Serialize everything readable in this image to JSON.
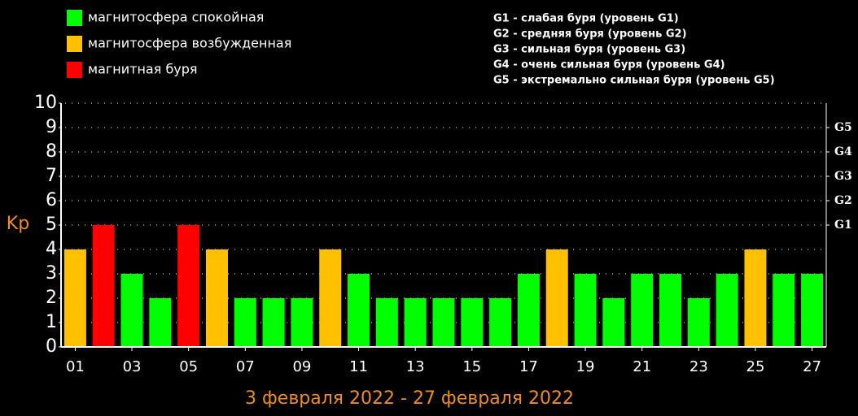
{
  "chart_data": {
    "type": "bar",
    "title": "3 февраля 2022 - 27 февраля 2022",
    "ylabel": "Kp",
    "legend": [
      {
        "label": "магнитосфера спокойная",
        "color": "#00ff00"
      },
      {
        "label": "магнитосфера возбужденная",
        "color": "#ffc000"
      },
      {
        "label": "магнитная буря",
        "color": "#ff0000"
      }
    ],
    "notes": [
      "G1 - слабая буря (уровень G1)",
      "G2 - средняя буря (уровень G2)",
      "G3 - сильная буря (уровень G3)",
      "G4 - очень сильная буря (уровень G4)",
      "G5 - экстремально сильная буря (уровень G5)"
    ],
    "categories": [
      "01",
      null,
      "03",
      null,
      "05",
      null,
      "07",
      null,
      "09",
      null,
      "11",
      null,
      "13",
      null,
      "15",
      null,
      "17",
      null,
      "19",
      null,
      "21",
      null,
      "23",
      null,
      "25",
      null,
      "27"
    ],
    "values": [
      4,
      5,
      3,
      2,
      5,
      4,
      2,
      2,
      2,
      4,
      3,
      2,
      2,
      2,
      2,
      2,
      3,
      4,
      3,
      2,
      3,
      3,
      2,
      3,
      4,
      3,
      3
    ],
    "colors": [
      "#ffc000",
      "#ff0000",
      "#00ff00",
      "#00ff00",
      "#ff0000",
      "#ffc000",
      "#00ff00",
      "#00ff00",
      "#00ff00",
      "#ffc000",
      "#00ff00",
      "#00ff00",
      "#00ff00",
      "#00ff00",
      "#00ff00",
      "#00ff00",
      "#00ff00",
      "#ffc000",
      "#00ff00",
      "#00ff00",
      "#00ff00",
      "#00ff00",
      "#00ff00",
      "#00ff00",
      "#ffc000",
      "#00ff00",
      "#00ff00"
    ],
    "ylim": [
      0,
      10
    ],
    "yticks": [
      0,
      1,
      2,
      3,
      4,
      5,
      6,
      7,
      8,
      9,
      10
    ],
    "y2lim": [
      0,
      10
    ],
    "y2ticks": [
      {
        "value": 5,
        "label": "G1"
      },
      {
        "value": 6,
        "label": "G2"
      },
      {
        "value": 7,
        "label": "G3"
      },
      {
        "value": 8,
        "label": "G4"
      },
      {
        "value": 9,
        "label": "G5"
      }
    ],
    "grid": true
  }
}
